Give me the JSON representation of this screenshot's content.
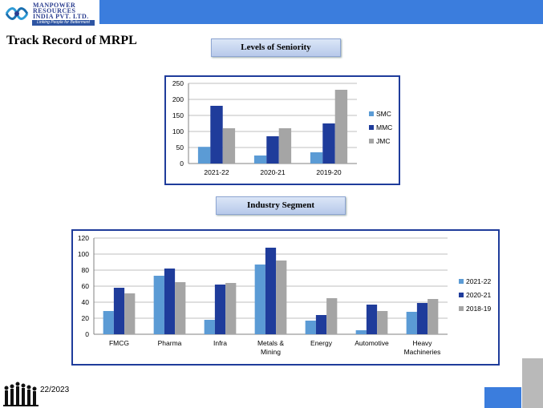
{
  "header": {
    "logo_line1": "MANPOWER",
    "logo_line2": "RESOURCES",
    "logo_line3": "INDIA PVT. LTD.",
    "logo_tagline": "Linking People for Betterment"
  },
  "page_title": "Track Record of MRPL",
  "sections": {
    "seniority_title": "Levels of Seniority",
    "industry_title": "Industry Segment"
  },
  "footer": {
    "date": "22/2023"
  },
  "colors": {
    "series1": "#5b9bd5",
    "series2": "#1f3c9b",
    "series3": "#a5a5a5",
    "accent_bar": "#3b7ddd",
    "frame": "#1f3c9b"
  },
  "chart_data": [
    {
      "type": "bar",
      "categories": [
        "2021-22",
        "2020-21",
        "2019-20"
      ],
      "series": [
        {
          "name": "SMC",
          "values": [
            52,
            25,
            35
          ]
        },
        {
          "name": "MMC",
          "values": [
            180,
            85,
            125
          ]
        },
        {
          "name": "JMC",
          "values": [
            110,
            110,
            230
          ]
        }
      ],
      "ylim": [
        0,
        250
      ],
      "yticks": [
        0,
        50,
        100,
        150,
        200,
        250
      ],
      "grid": true,
      "legend": "right"
    },
    {
      "type": "bar",
      "categories": [
        "FMCG",
        "Pharma",
        "Infra",
        "Metals & Mining",
        "Energy",
        "Automotive",
        "Heavy Machineries"
      ],
      "series": [
        {
          "name": "2021-22",
          "values": [
            29,
            73,
            18,
            87,
            17,
            5,
            28
          ]
        },
        {
          "name": "2020-21",
          "values": [
            58,
            82,
            62,
            108,
            24,
            37,
            39
          ]
        },
        {
          "name": "2018-19",
          "values": [
            51,
            65,
            64,
            92,
            45,
            29,
            44
          ]
        }
      ],
      "ylim": [
        0,
        120
      ],
      "yticks": [
        0,
        20,
        40,
        60,
        80,
        100,
        120
      ],
      "grid": true,
      "legend": "right"
    }
  ]
}
